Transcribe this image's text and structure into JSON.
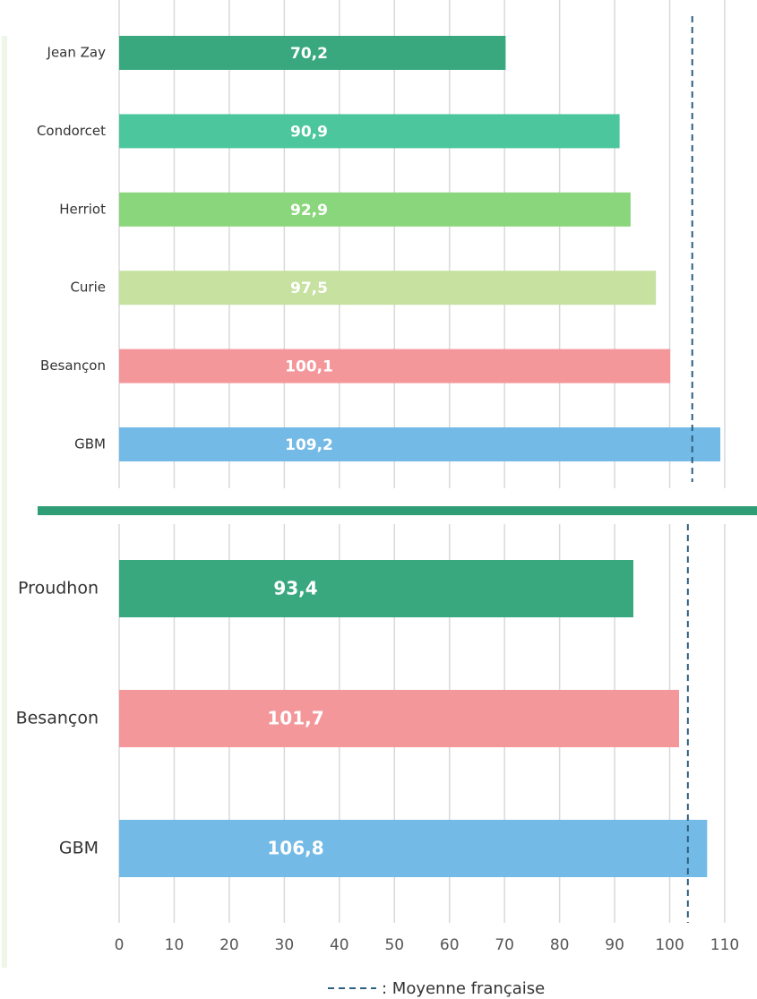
{
  "chart_data": [
    {
      "type": "barh",
      "categories": [
        "Jean Zay",
        "Condorcet",
        "Herriot",
        "Curie",
        "Besançon",
        "GBM"
      ],
      "values": [
        70.2,
        90.9,
        92.9,
        97.5,
        100.1,
        109.2
      ],
      "value_labels": [
        "70,2",
        "90,9",
        "92,9",
        "97,5",
        "100,1",
        "109,2"
      ],
      "colors": [
        "#3aa87f",
        "#4cc69d",
        "#8ad67c",
        "#c6e1a0",
        "#f4979b",
        "#73bae6"
      ],
      "xlim": [
        0,
        110
      ],
      "reference_line": 104.1
    },
    {
      "type": "barh",
      "categories": [
        "Proudhon",
        "Besançon",
        "GBM"
      ],
      "values": [
        93.4,
        101.7,
        106.8
      ],
      "value_labels": [
        "93,4",
        "101,7",
        "106,8"
      ],
      "colors": [
        "#3aa87f",
        "#f4979b",
        "#73bae6"
      ],
      "xlim": [
        0,
        110
      ],
      "xticks": [
        0,
        10,
        20,
        30,
        40,
        50,
        60,
        70,
        80,
        90,
        100,
        110
      ],
      "grid": true,
      "reference_line": 103.3
    }
  ],
  "legend": ": Moyenne française"
}
